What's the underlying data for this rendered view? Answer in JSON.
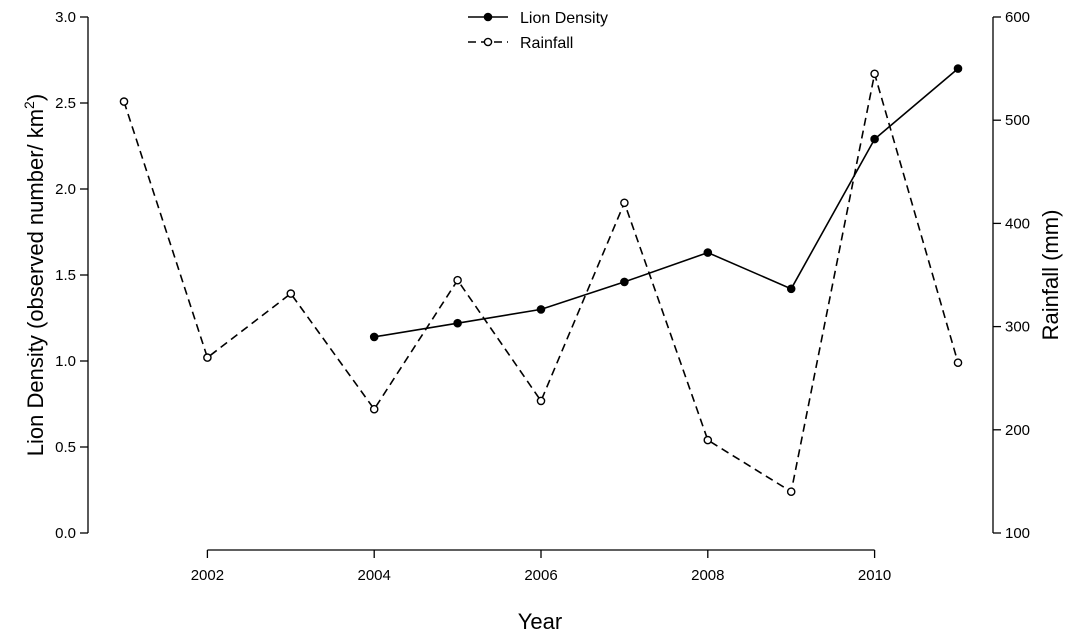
{
  "chart_data": {
    "type": "line",
    "xlabel": "Year",
    "ylabel": "Lion Density (observed number/ km",
    "ylabel_superscript": "2",
    "ylabel_close": ")",
    "y2label": "Rainfall (mm)",
    "xlim": [
      2001,
      2011
    ],
    "ylim": [
      0,
      3
    ],
    "y2lim": [
      100,
      600
    ],
    "x_ticks": [
      2002,
      2004,
      2006,
      2008,
      2010
    ],
    "y_ticks": [
      "0.0",
      "0.5",
      "1.0",
      "1.5",
      "2.0",
      "2.5",
      "3.0"
    ],
    "y2_ticks": [
      "100",
      "200",
      "300",
      "400",
      "500",
      "600"
    ],
    "grid": false,
    "legend_position": "top-center",
    "series": [
      {
        "name": "Lion Density",
        "axis": "left",
        "style": "solid",
        "marker": "filled-circle",
        "x": [
          2004,
          2005,
          2006,
          2007,
          2008,
          2009,
          2010,
          2011
        ],
        "y": [
          1.14,
          1.22,
          1.3,
          1.46,
          1.63,
          1.42,
          2.29,
          2.7
        ]
      },
      {
        "name": "Rainfall",
        "axis": "right",
        "style": "dashed",
        "marker": "open-circle",
        "x": [
          2001,
          2002,
          2003,
          2004,
          2005,
          2006,
          2007,
          2008,
          2009,
          2010,
          2011
        ],
        "y": [
          518,
          270,
          332,
          220,
          345,
          228,
          420,
          190,
          140,
          545,
          265
        ]
      }
    ]
  }
}
